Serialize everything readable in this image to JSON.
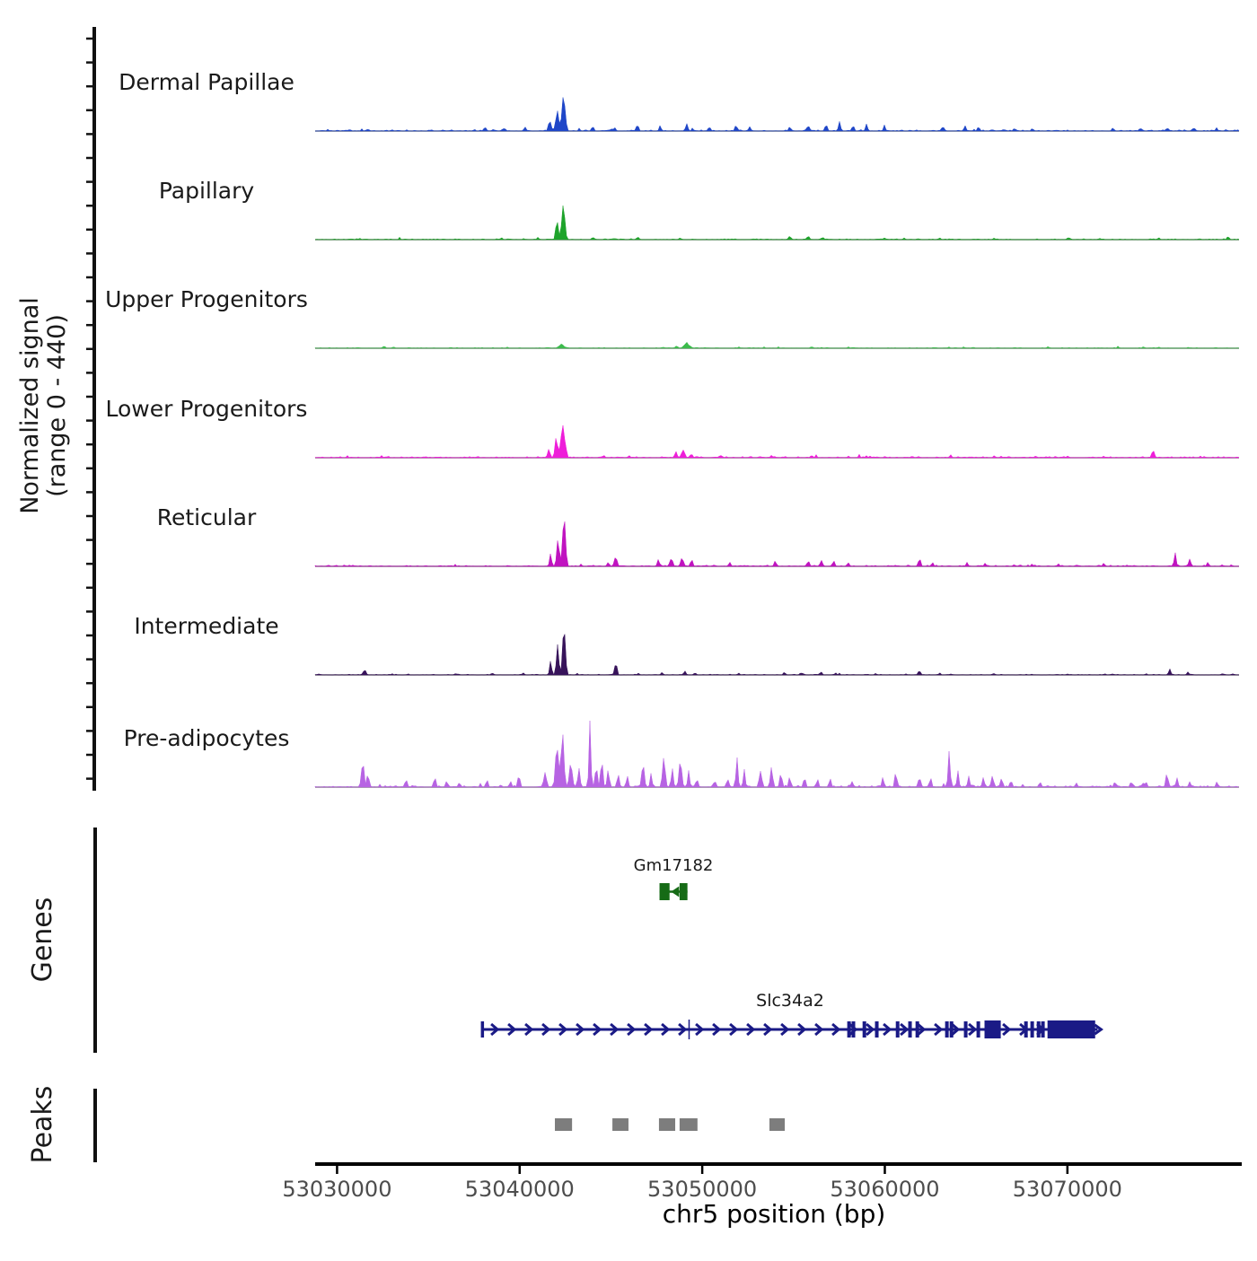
{
  "figure": {
    "y_axis_label_line1": "Normalized signal",
    "y_axis_label_line2": "(range 0 - 440)",
    "genes_section_label": "Genes",
    "peaks_section_label": "Peaks",
    "x_axis_title": "chr5 position (bp)"
  },
  "chart_data": {
    "type": "area",
    "xlabel": "chr5 position (bp)",
    "ylabel": "Normalized signal (range 0 - 440)",
    "chromosome": "chr5",
    "x_domain_bp": [
      53028800,
      53079400
    ],
    "x_ticks_bp": [
      53030000,
      53040000,
      53050000,
      53060000,
      53070000
    ],
    "x_tick_labels": [
      "53030000",
      "53040000",
      "53050000",
      "53060000",
      "53070000"
    ],
    "per_track_ylim": [
      0,
      440
    ],
    "tracks": [
      {
        "label": "Dermal Papillae",
        "color": "#1f46c8",
        "seed": 3,
        "noise_level": 7,
        "peaks_bp": [
          [
            53042400,
            185,
            500
          ],
          [
            53042050,
            115,
            400
          ],
          [
            53041650,
            70,
            350
          ],
          [
            53038100,
            22,
            350
          ],
          [
            53039100,
            18,
            300
          ],
          [
            53040300,
            24,
            300
          ],
          [
            53044000,
            30,
            320
          ],
          [
            53045200,
            20,
            300
          ],
          [
            53046450,
            34,
            320
          ],
          [
            53047700,
            26,
            300
          ],
          [
            53049150,
            36,
            320
          ],
          [
            53050400,
            24,
            300
          ],
          [
            53051850,
            30,
            300
          ],
          [
            53052600,
            22,
            300
          ],
          [
            53054800,
            26,
            320
          ],
          [
            53055800,
            30,
            320
          ],
          [
            53056780,
            36,
            320
          ],
          [
            53057520,
            40,
            320
          ],
          [
            53058260,
            34,
            300
          ],
          [
            53059000,
            30,
            300
          ],
          [
            53059980,
            24,
            300
          ],
          [
            53063170,
            30,
            300
          ],
          [
            53064400,
            28,
            300
          ],
          [
            53065140,
            24,
            300
          ],
          [
            53067100,
            18,
            300
          ],
          [
            53068090,
            16,
            300
          ],
          [
            53072500,
            16,
            300
          ],
          [
            53074000,
            20,
            300
          ],
          [
            53075470,
            18,
            300
          ],
          [
            53076940,
            20,
            300
          ],
          [
            53078170,
            16,
            300
          ]
        ]
      },
      {
        "label": "Papillary",
        "color": "#1ea32b",
        "seed": 7,
        "noise_level": 5,
        "peaks_bp": [
          [
            53042400,
            205,
            420
          ],
          [
            53042050,
            115,
            340
          ],
          [
            53039000,
            10,
            300
          ],
          [
            53041000,
            10,
            300
          ],
          [
            53044000,
            12,
            300
          ],
          [
            53046500,
            13,
            300
          ],
          [
            53048800,
            10,
            300
          ],
          [
            53054800,
            16,
            400
          ],
          [
            53055800,
            18,
            350
          ],
          [
            53056600,
            14,
            350
          ],
          [
            53060000,
            8,
            300
          ],
          [
            53063000,
            10,
            300
          ],
          [
            53066000,
            8,
            300
          ],
          [
            53070000,
            8,
            300
          ],
          [
            53075000,
            10,
            300
          ],
          [
            53078800,
            16,
            300
          ]
        ]
      },
      {
        "label": "Upper Progenitors",
        "color": "#3cbb4c",
        "seed": 13,
        "noise_level": 4,
        "peaks_bp": [
          [
            53042300,
            24,
            650
          ],
          [
            53048600,
            16,
            350
          ],
          [
            53049150,
            28,
            700
          ],
          [
            53052000,
            6,
            300
          ],
          [
            53056000,
            9,
            350
          ],
          [
            53058000,
            6,
            300
          ],
          [
            53063500,
            7,
            300
          ],
          [
            53069000,
            5,
            300
          ],
          [
            53075000,
            6,
            300
          ]
        ]
      },
      {
        "label": "Lower Progenitors",
        "color": "#ee1ed9",
        "seed": 21,
        "noise_level": 7,
        "peaks_bp": [
          [
            53042380,
            175,
            550
          ],
          [
            53042000,
            100,
            380
          ],
          [
            53041600,
            55,
            320
          ],
          [
            53044600,
            16,
            300
          ],
          [
            53046000,
            12,
            300
          ],
          [
            53048550,
            32,
            320
          ],
          [
            53048950,
            48,
            420
          ],
          [
            53049400,
            22,
            300
          ],
          [
            53051000,
            14,
            350
          ],
          [
            53053800,
            12,
            300
          ],
          [
            53056000,
            13,
            350
          ],
          [
            53059000,
            10,
            300
          ],
          [
            53061500,
            10,
            300
          ],
          [
            53063600,
            14,
            300
          ],
          [
            53066000,
            10,
            300
          ],
          [
            53069000,
            8,
            300
          ],
          [
            53072000,
            8,
            300
          ],
          [
            53074700,
            45,
            320
          ],
          [
            53077500,
            8,
            300
          ]
        ]
      },
      {
        "label": "Reticular",
        "color": "#c013c0",
        "seed": 31,
        "noise_level": 7,
        "peaks_bp": [
          [
            53042430,
            292,
            380
          ],
          [
            53042100,
            135,
            350
          ],
          [
            53041700,
            62,
            320
          ],
          [
            53044850,
            26,
            300
          ],
          [
            53045260,
            50,
            380
          ],
          [
            53047600,
            32,
            330
          ],
          [
            53048300,
            42,
            380
          ],
          [
            53048900,
            48,
            380
          ],
          [
            53049420,
            34,
            300
          ],
          [
            53051500,
            20,
            300
          ],
          [
            53054000,
            24,
            330
          ],
          [
            53055800,
            30,
            330
          ],
          [
            53056520,
            36,
            330
          ],
          [
            53057200,
            30,
            300
          ],
          [
            53058000,
            22,
            300
          ],
          [
            53061900,
            48,
            300
          ],
          [
            53062600,
            22,
            300
          ],
          [
            53064500,
            20,
            300
          ],
          [
            53065500,
            18,
            300
          ],
          [
            53069500,
            14,
            300
          ],
          [
            53072000,
            16,
            300
          ],
          [
            53075900,
            58,
            300
          ],
          [
            53076700,
            32,
            330
          ],
          [
            53077700,
            20,
            300
          ]
        ]
      },
      {
        "label": "Intermediate",
        "color": "#37135a",
        "seed": 41,
        "noise_level": 4,
        "peaks_bp": [
          [
            53042430,
            272,
            360
          ],
          [
            53042080,
            145,
            340
          ],
          [
            53041700,
            62,
            300
          ],
          [
            53045260,
            66,
            330
          ],
          [
            53031500,
            28,
            380
          ],
          [
            53036500,
            8,
            300
          ],
          [
            53038500,
            12,
            300
          ],
          [
            53040200,
            12,
            300
          ],
          [
            53046500,
            10,
            300
          ],
          [
            53047800,
            14,
            300
          ],
          [
            53049050,
            18,
            320
          ],
          [
            53049600,
            12,
            300
          ],
          [
            53052000,
            8,
            300
          ],
          [
            53054500,
            14,
            300
          ],
          [
            53055500,
            12,
            300
          ],
          [
            53056500,
            16,
            330
          ],
          [
            53057300,
            12,
            300
          ],
          [
            53059500,
            8,
            300
          ],
          [
            53061900,
            26,
            300
          ],
          [
            53063000,
            10,
            300
          ],
          [
            53066000,
            8,
            300
          ],
          [
            53070000,
            6,
            300
          ],
          [
            53072500,
            6,
            300
          ],
          [
            53075600,
            30,
            300
          ],
          [
            53076600,
            16,
            300
          ],
          [
            53078500,
            8,
            300
          ]
        ]
      },
      {
        "label": "Pre-adipocytes",
        "color": "#b763e3",
        "seed": 55,
        "noise_level": 9,
        "peaks_bp": [
          [
            53031400,
            145,
            350
          ],
          [
            53031700,
            80,
            300
          ],
          [
            53033800,
            30,
            300
          ],
          [
            53035350,
            55,
            300
          ],
          [
            53036000,
            35,
            300
          ],
          [
            53036700,
            30,
            300
          ],
          [
            53038200,
            40,
            300
          ],
          [
            53039500,
            35,
            300
          ],
          [
            53039960,
            65,
            300
          ],
          [
            53041400,
            90,
            400
          ],
          [
            53042050,
            200,
            450
          ],
          [
            53042350,
            235,
            450
          ],
          [
            53042800,
            140,
            400
          ],
          [
            53043250,
            110,
            300
          ],
          [
            53043850,
            340,
            260
          ],
          [
            53044200,
            120,
            280
          ],
          [
            53044500,
            148,
            300
          ],
          [
            53044850,
            90,
            300
          ],
          [
            53045400,
            70,
            300
          ],
          [
            53045900,
            55,
            300
          ],
          [
            53046750,
            140,
            350
          ],
          [
            53047200,
            60,
            300
          ],
          [
            53047900,
            130,
            380
          ],
          [
            53048350,
            95,
            300
          ],
          [
            53048800,
            130,
            380
          ],
          [
            53049250,
            70,
            300
          ],
          [
            53049700,
            45,
            300
          ],
          [
            53050700,
            40,
            300
          ],
          [
            53051400,
            50,
            300
          ],
          [
            53051900,
            150,
            300
          ],
          [
            53052300,
            70,
            300
          ],
          [
            53053200,
            90,
            380
          ],
          [
            53053800,
            100,
            350
          ],
          [
            53054300,
            80,
            300
          ],
          [
            53054800,
            60,
            300
          ],
          [
            53055600,
            55,
            300
          ],
          [
            53056300,
            45,
            300
          ],
          [
            53057000,
            40,
            300
          ],
          [
            53058200,
            30,
            350
          ],
          [
            53059900,
            50,
            300
          ],
          [
            53060600,
            70,
            300
          ],
          [
            53061900,
            60,
            350
          ],
          [
            53062500,
            50,
            300
          ],
          [
            53063520,
            190,
            280
          ],
          [
            53064000,
            70,
            300
          ],
          [
            53064600,
            50,
            300
          ],
          [
            53065400,
            60,
            300
          ],
          [
            53065900,
            70,
            320
          ],
          [
            53066400,
            55,
            300
          ],
          [
            53066900,
            40,
            300
          ],
          [
            53068500,
            25,
            300
          ],
          [
            53070500,
            20,
            300
          ],
          [
            53072600,
            30,
            300
          ],
          [
            53073500,
            35,
            300
          ],
          [
            53074300,
            30,
            300
          ],
          [
            53075450,
            70,
            320
          ],
          [
            53076000,
            45,
            300
          ],
          [
            53076700,
            30,
            300
          ],
          [
            53078200,
            28,
            300
          ]
        ]
      }
    ],
    "genes": [
      {
        "name": "Gm17182",
        "color": "#166b16",
        "strand": "-",
        "line_bp": [
          53047660,
          53049190
        ],
        "exon_blocks_bp": [
          [
            53047660,
            53048210
          ],
          [
            53048760,
            53049190
          ]
        ]
      },
      {
        "name": "Slc34a2",
        "color": "#1a1a86",
        "strand": "+",
        "line_bp": [
          53037950,
          53071650
        ],
        "thin_tick_bp": 53049280,
        "exon_ticks_bp": [
          53058040,
          53058280,
          53058880,
          53059560,
          53060700,
          53061380,
          53061780,
          53063400,
          53063650,
          53064430,
          53065120,
          53067730,
          53068070,
          53068420,
          53068660
        ],
        "exon_blocks_bp": [
          [
            53065460,
            53066350
          ],
          [
            53068910,
            53071520
          ]
        ]
      }
    ],
    "peak_calls": {
      "color": "#7d7d7d",
      "regions_bp": [
        [
          53041930,
          53042870
        ],
        [
          53045080,
          53045960
        ],
        [
          53047630,
          53048520
        ],
        [
          53048760,
          53049740
        ],
        [
          53053680,
          53054520
        ]
      ]
    }
  }
}
